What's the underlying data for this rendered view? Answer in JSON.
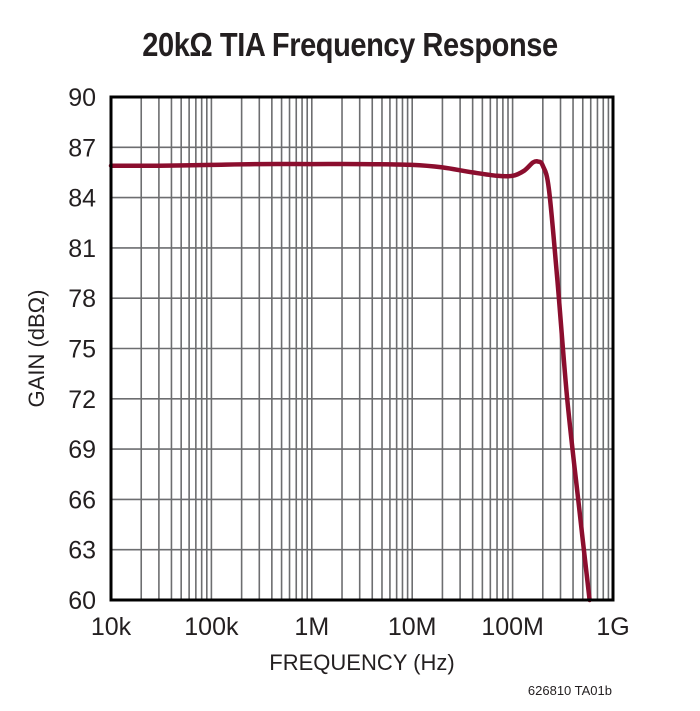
{
  "chart_data": {
    "type": "line",
    "title": "20kΩ TIA Frequency Response",
    "xlabel": "FREQUENCY (Hz)",
    "ylabel": "GAIN (dBΩ)",
    "xscale": "log",
    "xlim": [
      10000,
      1000000000
    ],
    "ylim": [
      60,
      90
    ],
    "x_tick_labels": [
      "10k",
      "100k",
      "1M",
      "10M",
      "100M",
      "1G"
    ],
    "x_tick_values": [
      10000,
      100000,
      1000000,
      10000000,
      100000000,
      1000000000
    ],
    "y_tick_labels": [
      "60",
      "63",
      "66",
      "69",
      "72",
      "75",
      "78",
      "81",
      "84",
      "87",
      "90"
    ],
    "y_tick_values": [
      60,
      63,
      66,
      69,
      72,
      75,
      78,
      81,
      84,
      87,
      90
    ],
    "grid": true,
    "legend": null,
    "series": [
      {
        "name": "Gain",
        "color": "#8b0e2e",
        "x": [
          10000,
          30000,
          100000,
          300000,
          1000000,
          3000000,
          10000000,
          20000000,
          40000000,
          70000000,
          100000000,
          130000000,
          160000000,
          180000000,
          200000000,
          230000000,
          280000000,
          350000000,
          450000000,
          585000000
        ],
        "y": [
          85.9,
          85.9,
          85.95,
          86.0,
          86.0,
          86.0,
          85.95,
          85.8,
          85.5,
          85.3,
          85.3,
          85.6,
          86.1,
          86.15,
          85.9,
          84.5,
          79.0,
          72.0,
          66.0,
          60.0
        ]
      }
    ],
    "annotation": "626810 TA01b"
  },
  "title": "20kΩ TIA Frequency Response",
  "footnote": "626810 TA01b"
}
